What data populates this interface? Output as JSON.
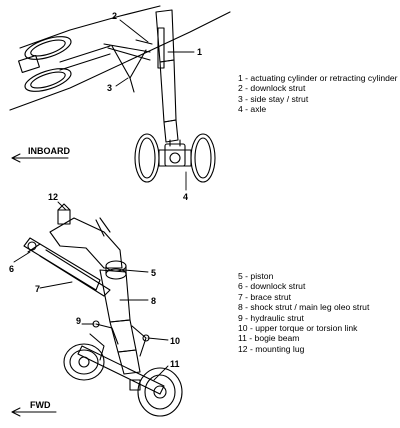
{
  "top_view": {
    "direction_label": "INBOARD",
    "callouts": [
      "1",
      "2",
      "3",
      "4"
    ],
    "legend": [
      "1 - actuating cylinder or retracting cylinder",
      "2 - downlock strut",
      "3 - side stay / strut",
      "4 - axle"
    ]
  },
  "bottom_view": {
    "direction_label": "FWD",
    "callouts": [
      "5",
      "6",
      "7",
      "8",
      "9",
      "10",
      "11",
      "12"
    ],
    "legend": [
      "5 - piston",
      "6 - downlock strut",
      "7 - brace strut",
      "8 - shock strut / main leg oleo strut",
      "9 - hydraulic strut",
      "10 - upper torque or torsion link",
      "11 - bogie beam",
      "12 - mounting lug"
    ]
  }
}
